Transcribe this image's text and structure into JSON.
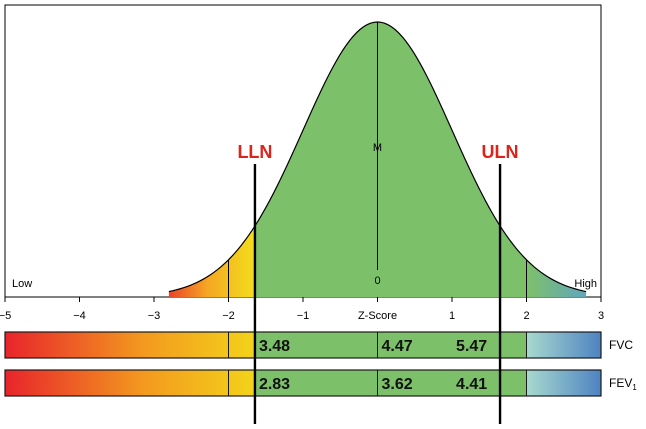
{
  "chart_data": {
    "type": "area",
    "title": "",
    "xlabel": "Z-Score",
    "ylabel": "",
    "xlim": [
      -5,
      3
    ],
    "x_ticks": [
      "−5",
      "−4",
      "−3",
      "−2",
      "−1",
      "0",
      "1",
      "2",
      "3"
    ],
    "x_tick_values": [
      -5,
      -4,
      -3,
      -2,
      -1,
      0,
      1,
      2,
      3
    ],
    "distribution": {
      "name": "normal",
      "mean": 0,
      "sd": 1,
      "fill_colors": {
        "far_low": "#e8392a",
        "low": "#f5a623",
        "borderline_low": "#f2e21c",
        "normal": "#7dc06a",
        "high": "#5aa0cf"
      }
    },
    "corner_labels": {
      "left": "Low",
      "right": "High"
    },
    "mean_marker": {
      "label": "M",
      "zero_label": "0",
      "z": 0
    },
    "limits": [
      {
        "label": "LLN",
        "z": -1.645,
        "color": "#e0221b"
      },
      {
        "label": "ULN",
        "z": 1.645,
        "color": "#e0221b"
      }
    ],
    "tick_lines_z": [
      -2,
      2
    ],
    "bars": [
      {
        "label": "FVC",
        "subscript": "",
        "values": [
          "3.48",
          "4.47",
          "5.47"
        ],
        "value_z": [
          -1.645,
          0,
          1.645
        ]
      },
      {
        "label": "FEV",
        "subscript": "1",
        "values": [
          "2.83",
          "3.62",
          "4.41"
        ],
        "value_z": [
          -1.645,
          0,
          1.645
        ]
      }
    ],
    "bar_colors": {
      "red": "#e8242b",
      "orange": "#f39a1f",
      "yellow": "#f3d51a",
      "green": "#7dc06a",
      "teal": "#a7d9cf",
      "blue": "#4f84c2"
    },
    "grid": false,
    "legend": "none"
  }
}
